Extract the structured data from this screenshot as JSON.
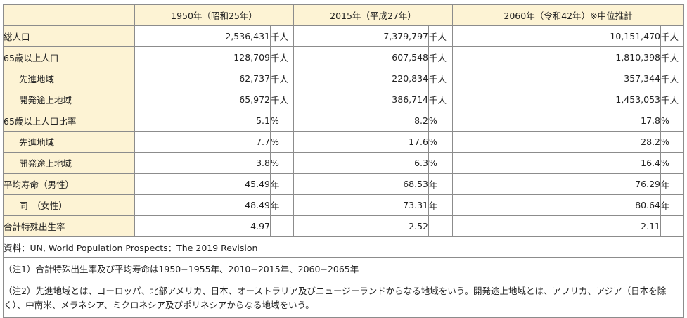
{
  "headers": {
    "col1": "1950年（昭和25年）",
    "col2": "2015年（平成27年）",
    "col3": "2060年（令和42年）※中位推計"
  },
  "rows": [
    {
      "label": "総人口",
      "indent": false,
      "v1": "2,536,431",
      "u1": "千人",
      "v2": "7,379,797",
      "u2": "千人",
      "v3": "10,151,470",
      "u3": "千人"
    },
    {
      "label": "65歳以上人口",
      "indent": false,
      "v1": "128,709",
      "u1": "千人",
      "v2": "607,548",
      "u2": "千人",
      "v3": "1,810,398",
      "u3": "千人"
    },
    {
      "label": "先進地域",
      "indent": true,
      "v1": "62,737",
      "u1": "千人",
      "v2": "220,834",
      "u2": "千人",
      "v3": "357,344",
      "u3": "千人"
    },
    {
      "label": "開発途上地域",
      "indent": true,
      "v1": "65,972",
      "u1": "千人",
      "v2": "386,714",
      "u2": "千人",
      "v3": "1,453,053",
      "u3": "千人"
    },
    {
      "label": "65歳以上人口比率",
      "indent": false,
      "v1": "5.1",
      "u1": "%",
      "v2": "8.2",
      "u2": "%",
      "v3": "17.8",
      "u3": "%"
    },
    {
      "label": "先進地域",
      "indent": true,
      "v1": "7.7",
      "u1": "%",
      "v2": "17.6",
      "u2": "%",
      "v3": "28.2",
      "u3": "%"
    },
    {
      "label": "開発途上地域",
      "indent": true,
      "v1": "3.8",
      "u1": "%",
      "v2": "6.3",
      "u2": "%",
      "v3": "16.4",
      "u3": "%"
    },
    {
      "label": "平均寿命（男性）",
      "indent": false,
      "v1": "45.49",
      "u1": "年",
      "v2": "68.53",
      "u2": "年",
      "v3": "76.29",
      "u3": "年"
    },
    {
      "label": "同　（女性）",
      "indent": true,
      "v1": "48.49",
      "u1": "年",
      "v2": "73.31",
      "u2": "年",
      "v3": "80.64",
      "u3": "年"
    },
    {
      "label": "合計特殊出生率",
      "indent": false,
      "v1": "4.97",
      "u1": "",
      "v2": "2.52",
      "u2": "",
      "v3": "2.11",
      "u3": ""
    }
  ],
  "notes": {
    "source": "資料：UN,  World Population Prospects：The 2019 Revision",
    "note1": "（注1）合計特殊出生率及び平均寿命は1950−1955年、2010−2015年、2060−2065年",
    "note2": "（注2）先進地域とは、ヨーロッパ、北部アメリカ、日本、オーストラリア及びニュージーランドからなる地域をいう。開発途上地域とは、アフリカ、アジア（日本を除く）、中南米、メラネシア、ミクロネシア及びポリネシアからなる地域をいう。"
  }
}
